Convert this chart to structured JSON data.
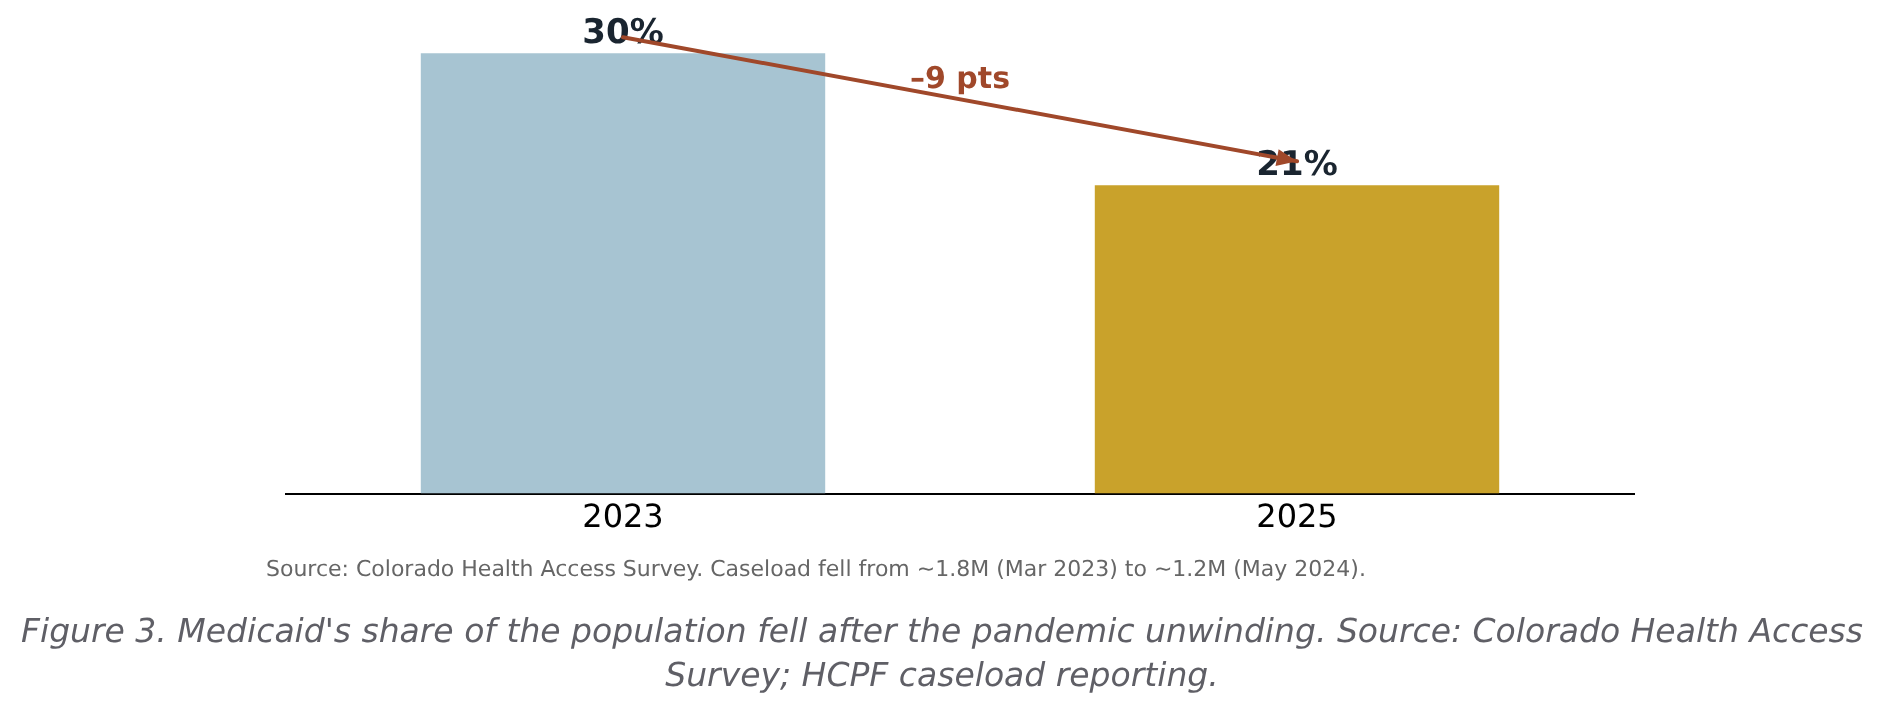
{
  "chart_data": {
    "type": "bar",
    "categories": [
      "2023",
      "2025"
    ],
    "values": [
      30,
      21
    ],
    "colors": [
      "#a7c4d2",
      "#c9a22b"
    ],
    "value_labels": [
      "30%",
      "21%"
    ],
    "grid": false,
    "legend": false,
    "tick_labels": "x",
    "annotations": [
      "–9 pts",
      "Source: Colorado Health Access Survey. Caseload fell from ~1.8M (Mar 2023) to ~1.2M (May 2024).",
      "Figure 3. Medicaid's share of the population fell after the pandemic unwinding. Source: Colorado Health Access Survey; HCPF caseload reporting."
    ]
  }
}
